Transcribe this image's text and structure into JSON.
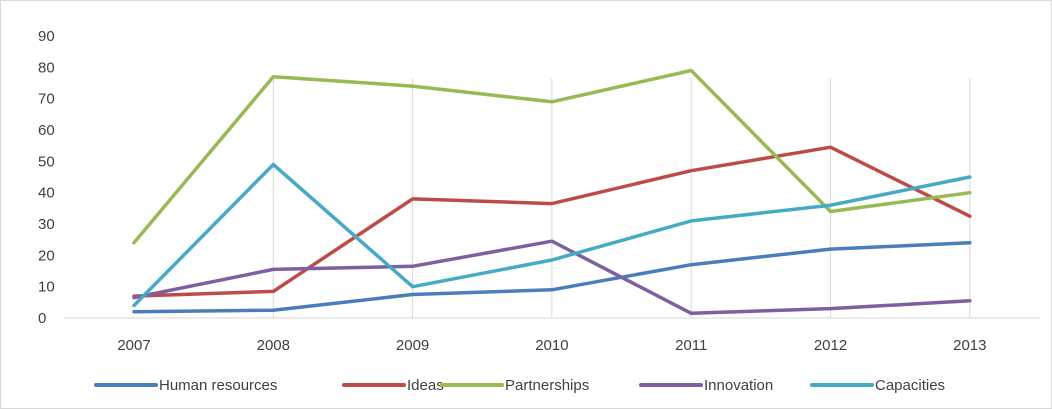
{
  "chart_data": {
    "type": "line",
    "categories": [
      "2007",
      "2008",
      "2009",
      "2010",
      "2011",
      "2012",
      "2013"
    ],
    "ylim": [
      0,
      90
    ],
    "yticks": [
      "0",
      "10",
      "20",
      "30",
      "40",
      "50",
      "60",
      "70",
      "80",
      "90"
    ],
    "grid": "vertical",
    "legend_position": "bottom",
    "series": [
      {
        "name": "Human resources",
        "color": "#4a7ebb",
        "values": [
          2,
          2.5,
          7.5,
          9,
          17,
          22,
          24
        ]
      },
      {
        "name": "Ideas",
        "color": "#be4b48",
        "values": [
          7,
          8.5,
          38,
          36.5,
          47,
          54.5,
          32.5
        ]
      },
      {
        "name": "Partnerships",
        "color": "#98b954",
        "values": [
          24,
          77,
          74,
          69,
          79,
          34,
          40
        ]
      },
      {
        "name": "Innovation",
        "color": "#7d60a0",
        "values": [
          6.5,
          15.5,
          16.5,
          24.5,
          1.5,
          3,
          5.5
        ]
      },
      {
        "name": "Capacities",
        "color": "#46aac5",
        "values": [
          4,
          49,
          10,
          18.5,
          31,
          36,
          45
        ]
      }
    ]
  }
}
